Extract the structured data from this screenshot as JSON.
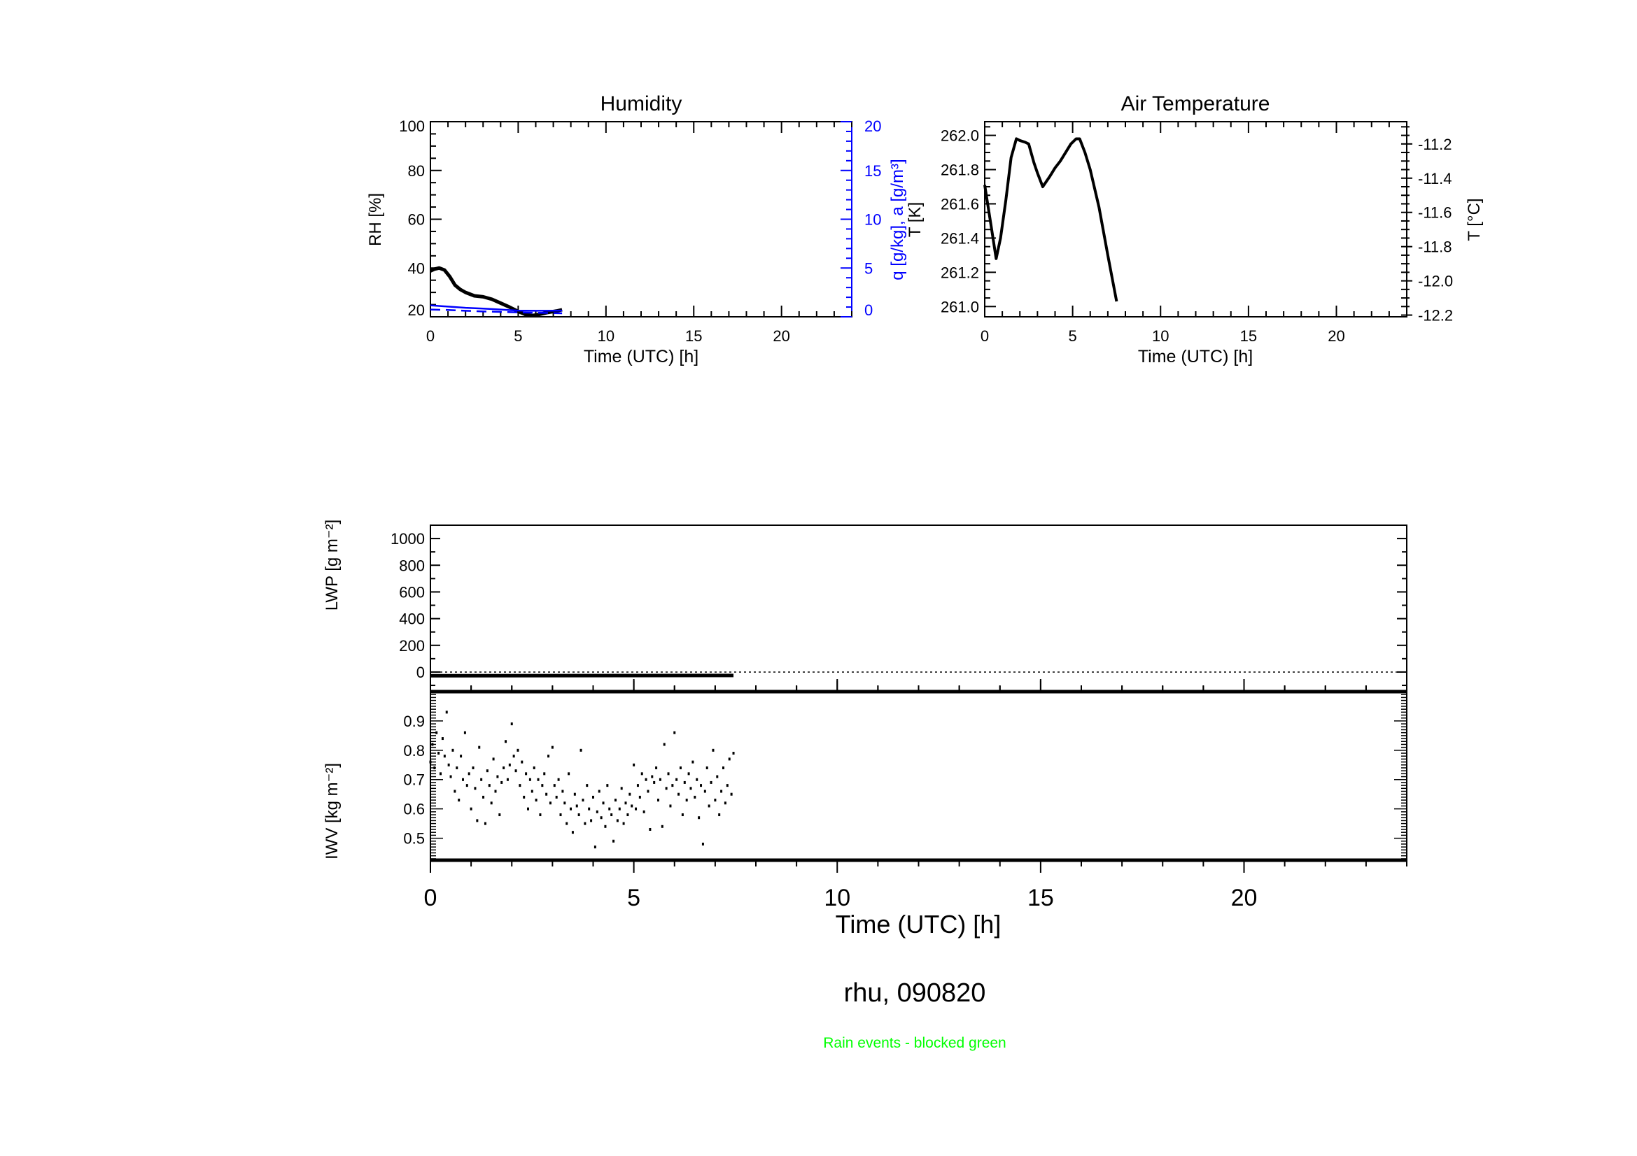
{
  "chart_data": [
    {
      "type": "line",
      "title": "Humidity",
      "xlabel": "Time (UTC) [h]",
      "ylabel": "RH [%]",
      "y2label": "q [g/kg], a [g/m³]",
      "xlim": [
        0,
        24
      ],
      "ylim": [
        20,
        100
      ],
      "y2lim": [
        0,
        20
      ],
      "xticks": [
        0,
        5,
        10,
        15,
        20
      ],
      "yticks": [
        20,
        40,
        60,
        80,
        100
      ],
      "y2ticks": [
        0,
        5,
        10,
        15,
        20
      ],
      "series": [
        {
          "name": "RH",
          "axis": "left",
          "color": "#000000",
          "style": "solid",
          "x": [
            0,
            0.25,
            0.5,
            0.8,
            1.1,
            1.4,
            1.7,
            2.0,
            2.5,
            3.0,
            3.5,
            4.0,
            4.5,
            5.0,
            5.4,
            5.8,
            6.2,
            6.7,
            7.2,
            7.5
          ],
          "y": [
            38.8,
            39.6,
            40.0,
            39.2,
            36.5,
            33.0,
            31.2,
            30.0,
            28.6,
            28.2,
            27.2,
            25.6,
            24.0,
            22.2,
            21.0,
            20.5,
            21.0,
            21.8,
            22.4,
            22.9
          ]
        },
        {
          "name": "q",
          "axis": "right",
          "color": "#0000ff",
          "style": "solid",
          "x": [
            0,
            1,
            2,
            3,
            4,
            5,
            6,
            7,
            7.5
          ],
          "y": [
            1.17,
            1.05,
            0.92,
            0.84,
            0.74,
            0.64,
            0.62,
            0.63,
            0.64
          ]
        },
        {
          "name": "a",
          "axis": "right",
          "color": "#0000ff",
          "style": "dashed",
          "x": [
            0,
            1,
            2,
            3,
            4,
            5,
            6,
            7,
            7.5
          ],
          "y": [
            0.74,
            0.7,
            0.62,
            0.55,
            0.5,
            0.45,
            0.42,
            0.38,
            0.36
          ]
        }
      ]
    },
    {
      "type": "line",
      "title": "Air Temperature",
      "xlabel": "Time (UTC) [h]",
      "ylabel": "T [K]",
      "y2label": "T [°C]",
      "xlim": [
        0,
        24
      ],
      "ylim": [
        260.94,
        262.08
      ],
      "xticks": [
        0,
        5,
        10,
        15,
        20
      ],
      "yticks": [
        261.0,
        261.2,
        261.4,
        261.6,
        261.8,
        262.0
      ],
      "y2ticks": [
        -12.2,
        -12.0,
        -11.8,
        -11.6,
        -11.4,
        -11.2
      ],
      "kelvin_offset": 273.15,
      "series": [
        {
          "name": "T",
          "color": "#000000",
          "x": [
            0,
            0.35,
            0.65,
            0.9,
            1.2,
            1.5,
            1.8,
            2.0,
            2.3,
            2.5,
            2.8,
            3.0,
            3.3,
            3.7,
            4.0,
            4.3,
            4.6,
            4.9,
            5.2,
            5.4,
            5.7,
            6.0,
            6.5,
            7.0,
            7.5
          ],
          "y": [
            261.71,
            261.48,
            261.28,
            261.4,
            261.62,
            261.87,
            261.98,
            261.97,
            261.96,
            261.95,
            261.84,
            261.78,
            261.7,
            261.76,
            261.81,
            261.85,
            261.9,
            261.95,
            261.98,
            261.98,
            261.9,
            261.8,
            261.58,
            261.3,
            261.03
          ]
        }
      ]
    },
    {
      "type": "line",
      "ylabel": "LWP [g m⁻²]",
      "xlim": [
        0,
        24
      ],
      "ylim": [
        -147,
        1100
      ],
      "yticks": [
        0,
        200,
        400,
        600,
        800,
        1000
      ],
      "reference_line": 0,
      "series": [
        {
          "name": "LWP",
          "color": "#000000",
          "x": [
            0,
            7.45
          ],
          "y": [
            -28,
            -26
          ]
        }
      ]
    },
    {
      "type": "scatter",
      "ylabel": "IWV [kg m⁻²]",
      "xlabel": "Time (UTC) [h]",
      "xlim": [
        0,
        24
      ],
      "ylim": [
        0.425,
        1.0
      ],
      "xticks": [
        0,
        5,
        10,
        15,
        20
      ],
      "yticks": [
        0.5,
        0.6,
        0.7,
        0.8,
        0.9
      ],
      "x_start": 0,
      "x_step": 0.05,
      "values": [
        0.76,
        0.82,
        0.74,
        0.86,
        0.79,
        0.72,
        0.84,
        0.78,
        0.93,
        0.75,
        0.71,
        0.8,
        0.66,
        0.74,
        0.63,
        0.78,
        0.7,
        0.86,
        0.68,
        0.72,
        0.6,
        0.74,
        0.67,
        0.56,
        0.81,
        0.7,
        0.64,
        0.55,
        0.73,
        0.68,
        0.62,
        0.77,
        0.66,
        0.71,
        0.58,
        0.69,
        0.74,
        0.83,
        0.7,
        0.75,
        0.89,
        0.78,
        0.73,
        0.8,
        0.68,
        0.76,
        0.64,
        0.72,
        0.6,
        0.7,
        0.66,
        0.74,
        0.63,
        0.7,
        0.58,
        0.68,
        0.72,
        0.65,
        0.78,
        0.62,
        0.81,
        0.68,
        0.64,
        0.7,
        0.58,
        0.66,
        0.62,
        0.55,
        0.72,
        0.6,
        0.52,
        0.65,
        0.61,
        0.58,
        0.8,
        0.63,
        0.55,
        0.68,
        0.6,
        0.56,
        0.64,
        0.47,
        0.59,
        0.66,
        0.57,
        0.62,
        0.54,
        0.68,
        0.6,
        0.58,
        0.49,
        0.63,
        0.56,
        0.6,
        0.67,
        0.55,
        0.62,
        0.58,
        0.65,
        0.61,
        0.75,
        0.6,
        0.68,
        0.64,
        0.72,
        0.59,
        0.7,
        0.66,
        0.53,
        0.71,
        0.69,
        0.74,
        0.63,
        0.7,
        0.54,
        0.82,
        0.67,
        0.72,
        0.61,
        0.68,
        0.86,
        0.7,
        0.65,
        0.74,
        0.58,
        0.69,
        0.63,
        0.72,
        0.67,
        0.76,
        0.64,
        0.7,
        0.57,
        0.68,
        0.48,
        0.66,
        0.74,
        0.61,
        0.69,
        0.8,
        0.63,
        0.71,
        0.58,
        0.66,
        0.74,
        0.62,
        0.68,
        0.77,
        0.65,
        0.79
      ]
    }
  ],
  "footer": {
    "station_date": "rhu, 090820",
    "note": "Rain events - blocked green",
    "note_color": "#00ff00"
  },
  "colors": {
    "axis": "#000000",
    "humidity_secondary": "#0000ff"
  }
}
